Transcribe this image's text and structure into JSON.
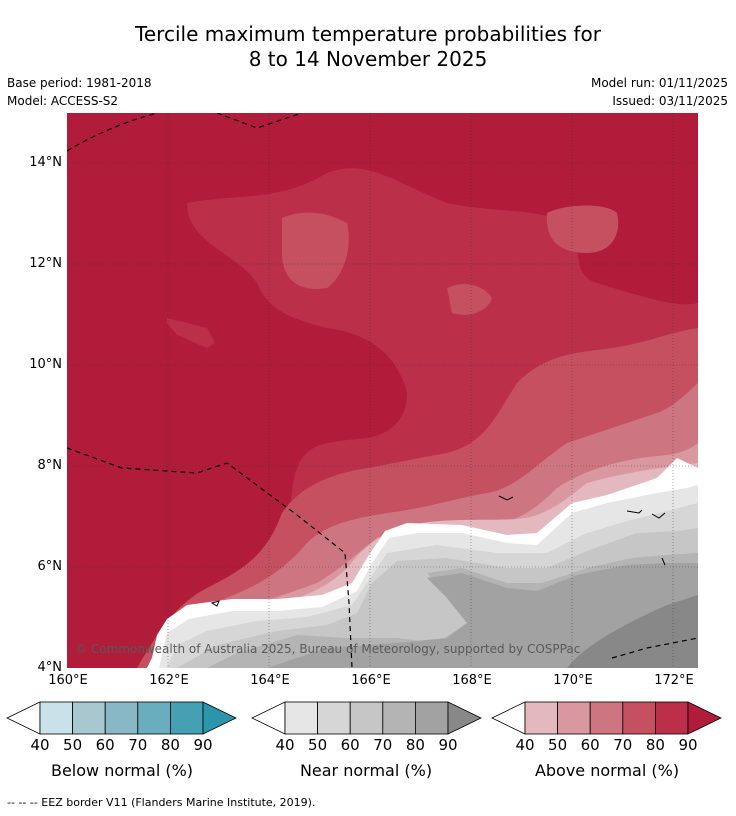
{
  "header": {
    "title_line1": "Tercile maximum temperature probabilities for",
    "title_line2": "8 to 14 November 2025",
    "base_period": "Base period: 1981-2018",
    "model": "Model: ACCESS-S2",
    "model_run": "Model run: 01/11/2025",
    "issued": "Issued: 03/11/2025"
  },
  "map": {
    "lat_ticks": [
      "14°N",
      "12°N",
      "10°N",
      "8°N",
      "6°N",
      "4°N"
    ],
    "lon_ticks": [
      "160°E",
      "162°E",
      "164°E",
      "166°E",
      "168°E",
      "170°E",
      "172°E"
    ],
    "copyright": "© Commonwealth of Australia 2025, Bureau of Meteorology, supported by COSPPac"
  },
  "legends": [
    {
      "label": "Below normal (%)",
      "ticks": [
        "40",
        "50",
        "60",
        "70",
        "80",
        "90"
      ],
      "colors": [
        "#c9e1e8",
        "#a8c8d0",
        "#88b7c6",
        "#69aebf",
        "#45a0b4",
        "#2b95ac"
      ]
    },
    {
      "label": "Near normal (%)",
      "ticks": [
        "40",
        "50",
        "60",
        "70",
        "80",
        "90"
      ],
      "colors": [
        "#e6e6e6",
        "#d6d6d6",
        "#c6c6c6",
        "#b4b4b4",
        "#a2a2a2",
        "#888888"
      ]
    },
    {
      "label": "Above normal (%)",
      "ticks": [
        "40",
        "50",
        "60",
        "70",
        "80",
        "90"
      ],
      "colors": [
        "#e4b8bf",
        "#d9979f",
        "#cd7580",
        "#c45060",
        "#bb3048",
        "#b01c3a"
      ]
    }
  ],
  "footer": {
    "eez_note": "--  --  -- EEZ border V11 (Flanders Marine Institute, 2019)."
  }
}
